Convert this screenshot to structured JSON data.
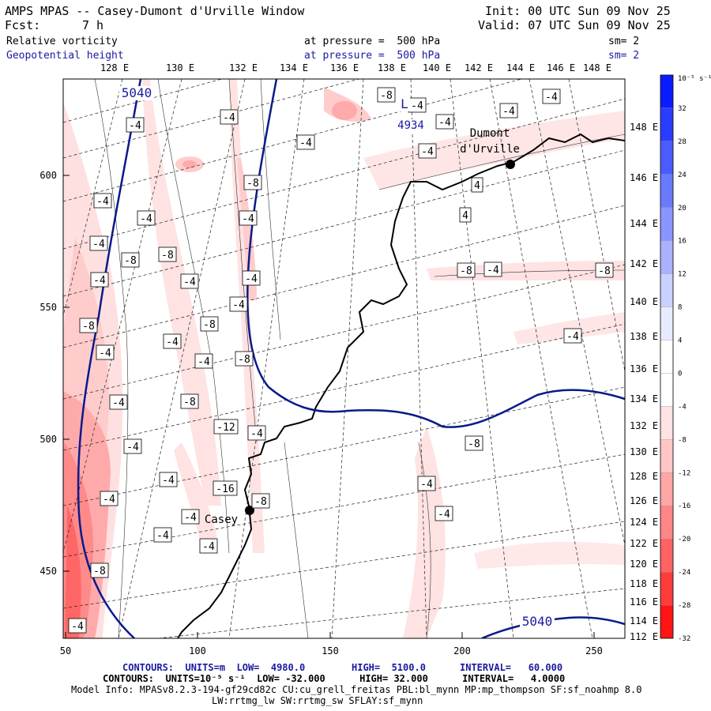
{
  "header": {
    "title": "AMPS MPAS -- Casey-Dumont d'Urville Window",
    "fcst_label": "Fcst:",
    "fcst_value": "7 h",
    "init": "Init: 00 UTC Sun 09 Nov 25",
    "valid": "Valid: 07 UTC Sun 09 Nov 25",
    "field1": "Relative vorticity",
    "field1_level": "at pressure =  500 hPa",
    "field1_sm": "sm= 2",
    "field2": "Geopotential height",
    "field2_level": "at pressure =  500 hPa",
    "field2_sm": "sm= 2"
  },
  "top_longitude_labels": [
    "128 E",
    "130 E",
    "132 E",
    "134 E",
    "136 E",
    "138 E",
    "140 E",
    "142 E",
    "144 E",
    "146 E",
    "148 E"
  ],
  "right_latitude_labels": [
    "148 E",
    "146 E",
    "144 E",
    "142 E",
    "140 E",
    "138 E",
    "136 E",
    "134 E",
    "132 E",
    "130 E",
    "128 E",
    "126 E",
    "124 E",
    "122 E",
    "120 E",
    "118 E",
    "116 E",
    "114 E",
    "112 E"
  ],
  "x_axis_ticks": [
    "50",
    "100",
    "150",
    "200",
    "250"
  ],
  "y_axis_ticks": [
    "600",
    "550",
    "500",
    "450"
  ],
  "colorbar": {
    "unit": "10⁻⁵ s⁻¹",
    "labels": [
      "32",
      "28",
      "24",
      "20",
      "16",
      "12",
      "8",
      "4",
      "0",
      "-4",
      "-8",
      "-12",
      "-16",
      "-20",
      "-24",
      "-28",
      "-32"
    ],
    "colors": [
      "#0a1cff",
      "#2a3cff",
      "#4a5cff",
      "#6a7aff",
      "#8a96ff",
      "#aab2ff",
      "#cad0ff",
      "#e8ebff",
      "#ffffff",
      "#ffffff",
      "#ffe2e2",
      "#ffc6c6",
      "#ffa6a6",
      "#ff8686",
      "#ff6262",
      "#ff3c3c",
      "#ff1414"
    ]
  },
  "stations": [
    {
      "name": "Dumont",
      "name2": "d'Urville"
    },
    {
      "name": "Casey"
    }
  ],
  "height_labels": {
    "north": "5040",
    "low_label": "L",
    "low_value": "4934",
    "south": "5040"
  },
  "vorticity_labels": [
    "-8",
    "-4",
    "-4",
    "-4",
    "-4",
    "-4",
    "-4",
    "-4",
    "-4",
    "4",
    "4",
    "-8",
    "-4",
    "-4",
    "-4",
    "-4",
    "-8",
    "-8",
    "-4",
    "-4",
    "-4",
    "-8",
    "-4",
    "-8",
    "-4",
    "-8",
    "-4",
    "-4",
    "-8",
    "-4",
    "-8",
    "-4",
    "-4",
    "-8",
    "-4",
    "-12",
    "-4",
    "-8",
    "-4",
    "-4",
    "-16",
    "-8",
    "-4",
    "-4",
    "-8",
    "-4",
    "-4",
    "-4",
    "-4"
  ],
  "footer": {
    "line1_a": "CONTOURS:  UNITS=m  LOW=  4980.0",
    "line1_b": "HIGH=  5100.0",
    "line1_c": "INTERVAL=   60.000",
    "line2": "CONTOURS:  UNITS=10⁻⁵ s⁻¹  LOW= -32.000      HIGH= 32.000      INTERVAL=   4.0000",
    "line3": "Model Info: MPASv8.2.3-194-gf29cd82c CU:cu_grell_freitas PBL:bl_mynn MP:mp_thompson SF:sf_noahmp 8.0",
    "line4": "LW:rrtmg_lw SW:rrtmg_sw SFLAY:sf_mynn"
  }
}
